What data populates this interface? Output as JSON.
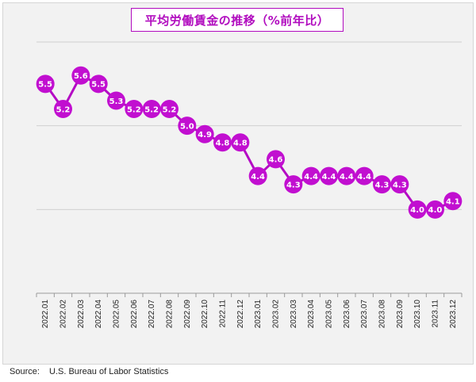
{
  "chart_data": {
    "type": "line",
    "title": "平均労働賃金の推移（%前年比）",
    "categories": [
      "2022.01",
      "2022.02",
      "2022.03",
      "2022.04",
      "2022.05",
      "2022.06",
      "2022.07",
      "2022.08",
      "2022.09",
      "2022.10",
      "2022.11",
      "2022.12",
      "2023.01",
      "2023.02",
      "2023.03",
      "2023.04",
      "2023.05",
      "2023.06",
      "2023.07",
      "2023.08",
      "2023.09",
      "2023.10",
      "2023.11",
      "2023.12"
    ],
    "values": [
      5.5,
      5.2,
      5.6,
      5.5,
      5.3,
      5.2,
      5.2,
      5.2,
      5.0,
      4.9,
      4.8,
      4.8,
      4.4,
      4.6,
      4.3,
      4.4,
      4.4,
      4.4,
      4.4,
      4.3,
      4.3,
      4.0,
      4.0,
      4.1
    ],
    "ylim": [
      3.0,
      6.0
    ],
    "grid": true,
    "color": "#c10fd0",
    "line_color": "#b40ac4"
  },
  "source": {
    "label": "Source:",
    "text": "U.S. Bureau of Labor Statistics"
  }
}
